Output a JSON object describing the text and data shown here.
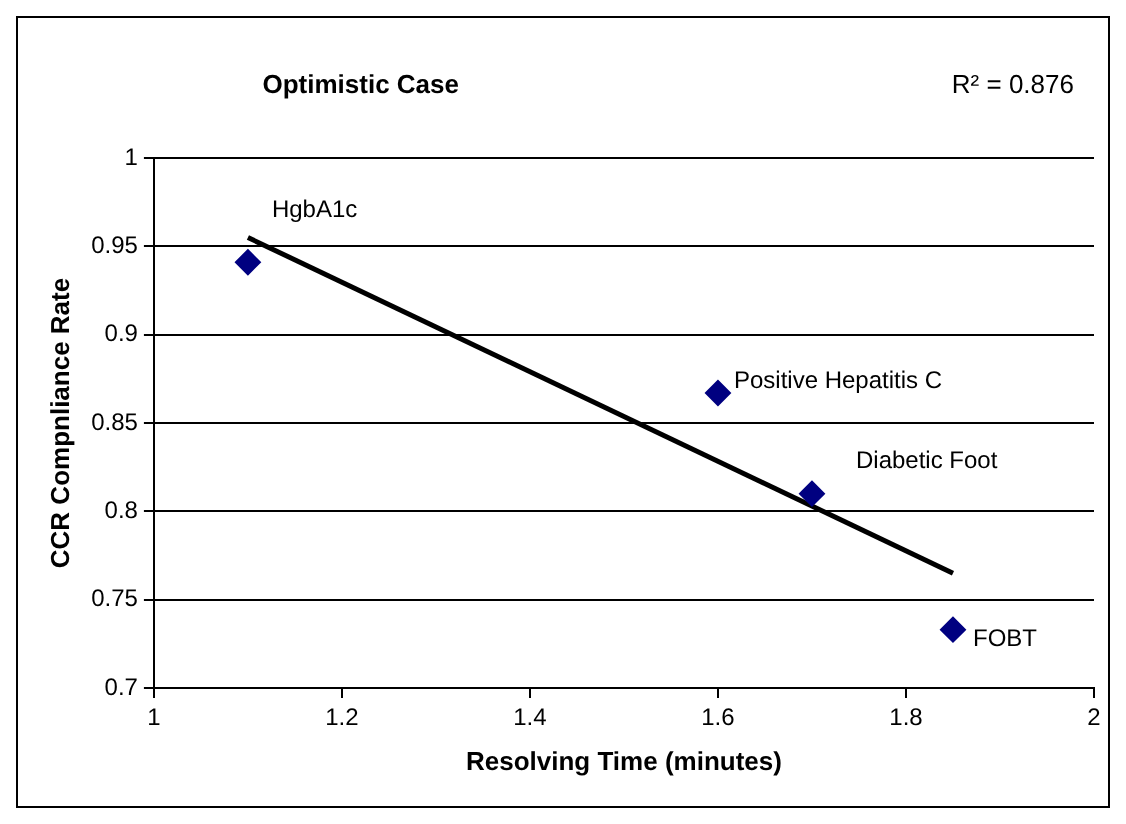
{
  "chart_data": {
    "type": "scatter",
    "title": "Optimistic Case",
    "xlabel": "Resolving Time (minutes)",
    "ylabel": "CCR Compnliance Rate",
    "x": [
      1.1,
      1.6,
      1.7,
      1.85
    ],
    "series": [
      {
        "color": "#000080",
        "values": [
          0.941,
          0.867,
          0.81,
          0.733
        ]
      },
      {
        "type": "line",
        "marker": "none",
        "color": "#000000",
        "x": [
          1.1,
          1.85
        ],
        "values": [
          0.955,
          0.765
        ]
      }
    ],
    "annotations": [
      "R² = 0.876",
      {
        "text": "HgbA1c",
        "x": 1.1,
        "y": 0.941
      },
      {
        "text": "Positive Hepatitis C",
        "x": 1.6,
        "y": 0.867
      },
      {
        "text": "Diabetic Foot",
        "x": 1.7,
        "y": 0.81
      },
      {
        "text": "FOBT",
        "x": 1.85,
        "y": 0.733
      }
    ],
    "xlim": [
      1,
      2
    ],
    "xticks": [
      1,
      1.2,
      1.4,
      1.6,
      1.8,
      2
    ],
    "ylim": [
      0.7,
      1
    ],
    "yticks": [
      0.7,
      0.75,
      0.8,
      0.85,
      0.9,
      0.95,
      1
    ],
    "grid": "y",
    "legend": false,
    "marker": "diamond",
    "line_style": "solid"
  }
}
